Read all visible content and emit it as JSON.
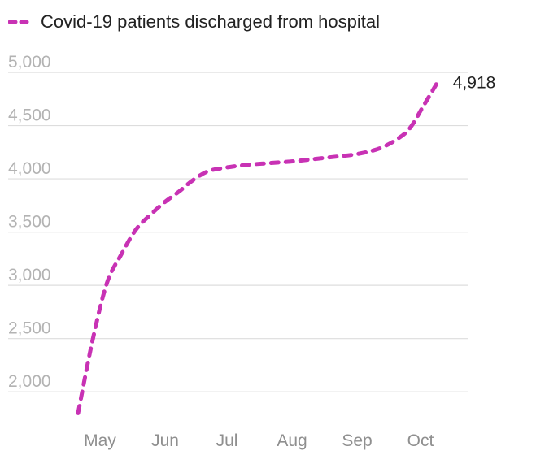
{
  "colors": {
    "series": "#c832b4",
    "grid": "#dddddd",
    "tick": "#b3b3b3"
  },
  "chart_data": {
    "type": "line",
    "title": "",
    "xlabel": "",
    "ylabel": "",
    "y_ticks": [
      2000,
      2500,
      3000,
      3500,
      4000,
      4500,
      5000
    ],
    "y_tick_labels": [
      "2,000",
      "2,500",
      "3,000",
      "3,500",
      "4,000",
      "4,500",
      "5,000"
    ],
    "ylim": [
      1750,
      5000
    ],
    "x_ticks": [
      "May",
      "Jun",
      "Jul",
      "Aug",
      "Sep",
      "Oct"
    ],
    "grid": true,
    "legend_position": "top-left",
    "series": [
      {
        "name": "Covid-19 patients discharged from hospital",
        "style": "dashed",
        "x": [
          "2020-05-01",
          "2020-05-08",
          "2020-05-15",
          "2020-05-22",
          "2020-05-29",
          "2020-06-05",
          "2020-06-12",
          "2020-06-19",
          "2020-06-26",
          "2020-07-03",
          "2020-07-10",
          "2020-07-17",
          "2020-07-24",
          "2020-07-31",
          "2020-08-07",
          "2020-08-14",
          "2020-08-21",
          "2020-08-28",
          "2020-09-04",
          "2020-09-11",
          "2020-09-18",
          "2020-09-25",
          "2020-10-02",
          "2020-10-09",
          "2020-10-16",
          "2020-10-23"
        ],
        "y": [
          1800,
          2480,
          3020,
          3290,
          3520,
          3660,
          3780,
          3880,
          3990,
          4070,
          4100,
          4120,
          4135,
          4145,
          4155,
          4165,
          4180,
          4195,
          4210,
          4225,
          4250,
          4290,
          4360,
          4470,
          4690,
          4918
        ]
      }
    ],
    "annotations": [
      {
        "label": "4,918"
      }
    ]
  }
}
